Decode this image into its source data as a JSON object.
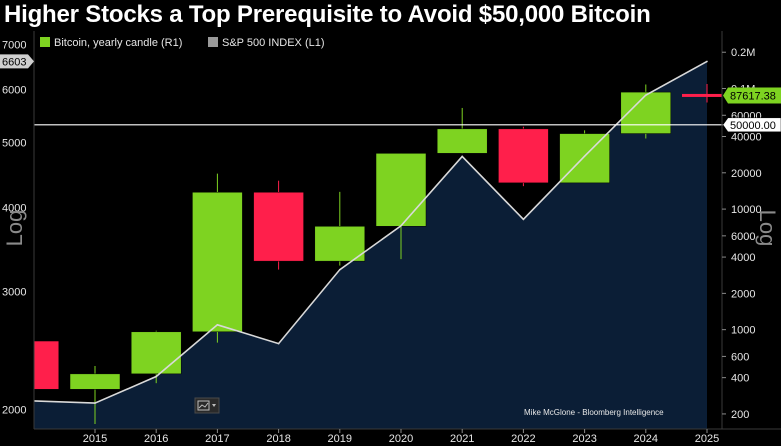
{
  "title": "Higher Stocks a Top Prerequisite to Avoid $50,000 Bitcoin",
  "credit": "Mike McGlone - Bloomberg Intelligence",
  "colors": {
    "up": "#7ed321",
    "down": "#ff1f4b",
    "area": "#0b1e36",
    "sp_line": "#d9d9d9",
    "ref_line": "#ffffff",
    "background": "#000000"
  },
  "chart_data": {
    "type": "candlestick+area",
    "title": "Higher Stocks a Top Prerequisite to Avoid $50,000 Bitcoin",
    "legend_position": "top-left",
    "grid": false,
    "x": {
      "tick_labels": [
        "2015",
        "2016",
        "2017",
        "2018",
        "2019",
        "2020",
        "2021",
        "2022",
        "2023",
        "2024",
        "2025"
      ]
    },
    "left_axis": {
      "label": "Log",
      "scale": "log",
      "range": [
        1870,
        7330
      ],
      "ticks": [
        2000,
        3000,
        4000,
        5000,
        6000,
        7000
      ],
      "current_value_tag": "6603"
    },
    "right_axis": {
      "label": "Log",
      "scale": "log",
      "range": [
        150,
        300000
      ],
      "ticks": [
        {
          "value": 200000,
          "label": "0.2M"
        },
        {
          "value": 100000,
          "label": "0.1M"
        },
        {
          "value": 60000,
          "label": "60000"
        },
        {
          "value": 40000,
          "label": "40000"
        },
        {
          "value": 20000,
          "label": "20000"
        },
        {
          "value": 10000,
          "label": "10000"
        },
        {
          "value": 6000,
          "label": "6000"
        },
        {
          "value": 4000,
          "label": "4000"
        },
        {
          "value": 2000,
          "label": "2000"
        },
        {
          "value": 1000,
          "label": "1000"
        },
        {
          "value": 600,
          "label": "600"
        },
        {
          "value": 400,
          "label": "400"
        },
        {
          "value": 200,
          "label": "200"
        }
      ],
      "last_price_tag": "87617.38",
      "reference_tag": "50000.00",
      "reference_value": 50000
    },
    "series": [
      {
        "name": "Bitcoin, yearly candle (R1)",
        "type": "candlestick",
        "axis": "right",
        "data": [
          {
            "x": 2014,
            "open": 805,
            "high": 1160,
            "low": 310,
            "close": 320
          },
          {
            "x": 2015,
            "open": 320,
            "high": 500,
            "low": 165,
            "close": 430
          },
          {
            "x": 2016,
            "open": 430,
            "high": 980,
            "low": 360,
            "close": 960
          },
          {
            "x": 2017,
            "open": 960,
            "high": 19700,
            "low": 780,
            "close": 13800
          },
          {
            "x": 2018,
            "open": 13800,
            "high": 17200,
            "low": 3150,
            "close": 3700
          },
          {
            "x": 2019,
            "open": 3700,
            "high": 13900,
            "low": 3400,
            "close": 7200
          },
          {
            "x": 2020,
            "open": 7200,
            "high": 29000,
            "low": 3850,
            "close": 29000
          },
          {
            "x": 2021,
            "open": 29000,
            "high": 69000,
            "low": 28800,
            "close": 46300
          },
          {
            "x": 2022,
            "open": 46300,
            "high": 48200,
            "low": 15500,
            "close": 16500
          },
          {
            "x": 2023,
            "open": 16500,
            "high": 45000,
            "low": 16500,
            "close": 42300
          },
          {
            "x": 2024,
            "open": 42300,
            "high": 108000,
            "low": 38500,
            "close": 93400
          },
          {
            "x": 2025,
            "open": 93400,
            "high": 109000,
            "low": 76600,
            "close": 87617.38
          }
        ]
      },
      {
        "name": "S&P 500 INDEX (L1)",
        "type": "area",
        "axis": "left",
        "data": [
          {
            "x": 2014,
            "y": 2059
          },
          {
            "x": 2015,
            "y": 2044
          },
          {
            "x": 2016,
            "y": 2239
          },
          {
            "x": 2017,
            "y": 2674
          },
          {
            "x": 2018,
            "y": 2507
          },
          {
            "x": 2019,
            "y": 3231
          },
          {
            "x": 2020,
            "y": 3756
          },
          {
            "x": 2021,
            "y": 4766
          },
          {
            "x": 2022,
            "y": 3840
          },
          {
            "x": 2023,
            "y": 4770
          },
          {
            "x": 2024,
            "y": 5882
          },
          {
            "x": 2025,
            "y": 6603
          }
        ]
      }
    ]
  }
}
